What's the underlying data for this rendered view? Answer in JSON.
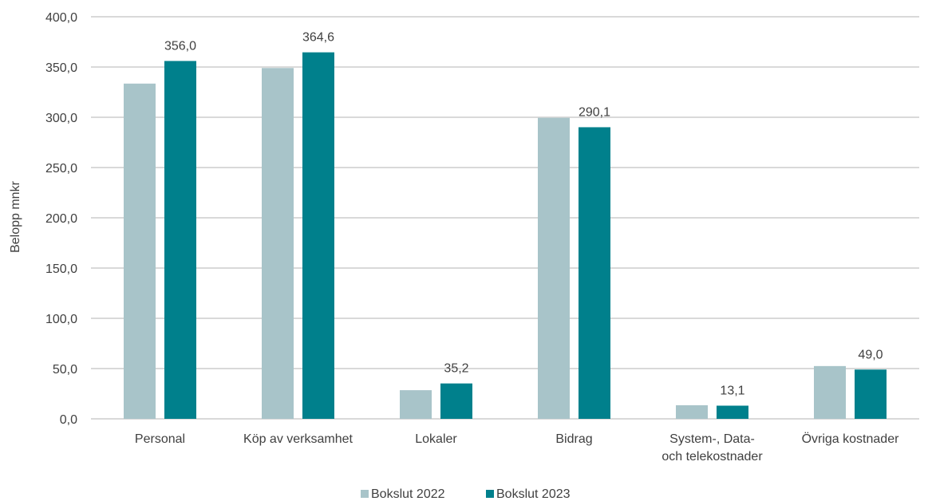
{
  "colors": {
    "series_2022": "#a8c4c9",
    "series_2023": "#00808c",
    "grid": "#d9d9d9",
    "text": "#404040"
  },
  "chart_data": {
    "type": "bar",
    "title": "",
    "xlabel": "",
    "ylabel": "Belopp mnkr",
    "ylim": [
      0,
      400
    ],
    "yticks": [
      "0,0",
      "50,0",
      "100,0",
      "150,0",
      "200,0",
      "250,0",
      "300,0",
      "350,0",
      "400,0"
    ],
    "ytick_values": [
      0,
      50,
      100,
      150,
      200,
      250,
      300,
      350,
      400
    ],
    "grid": true,
    "legend_position": "bottom",
    "categories": [
      [
        "Personal"
      ],
      [
        "Köp av verksamhet"
      ],
      [
        "Lokaler"
      ],
      [
        "Bidrag"
      ],
      [
        "System-, Data-",
        "och telekostnader"
      ],
      [
        "Övriga kostnader"
      ]
    ],
    "series": [
      {
        "name": "Bokslut 2022",
        "color_key": "series_2022",
        "values": [
          333.5,
          349.0,
          28.5,
          299.5,
          13.5,
          52.5
        ],
        "labels": [
          "",
          "",
          "",
          "",
          "",
          ""
        ]
      },
      {
        "name": "Bokslut 2023",
        "color_key": "series_2023",
        "values": [
          356.0,
          364.6,
          35.2,
          290.1,
          13.1,
          49.0
        ],
        "labels": [
          "356,0",
          "364,6",
          "35,2",
          "290,1",
          "13,1",
          "49,0"
        ]
      }
    ]
  }
}
